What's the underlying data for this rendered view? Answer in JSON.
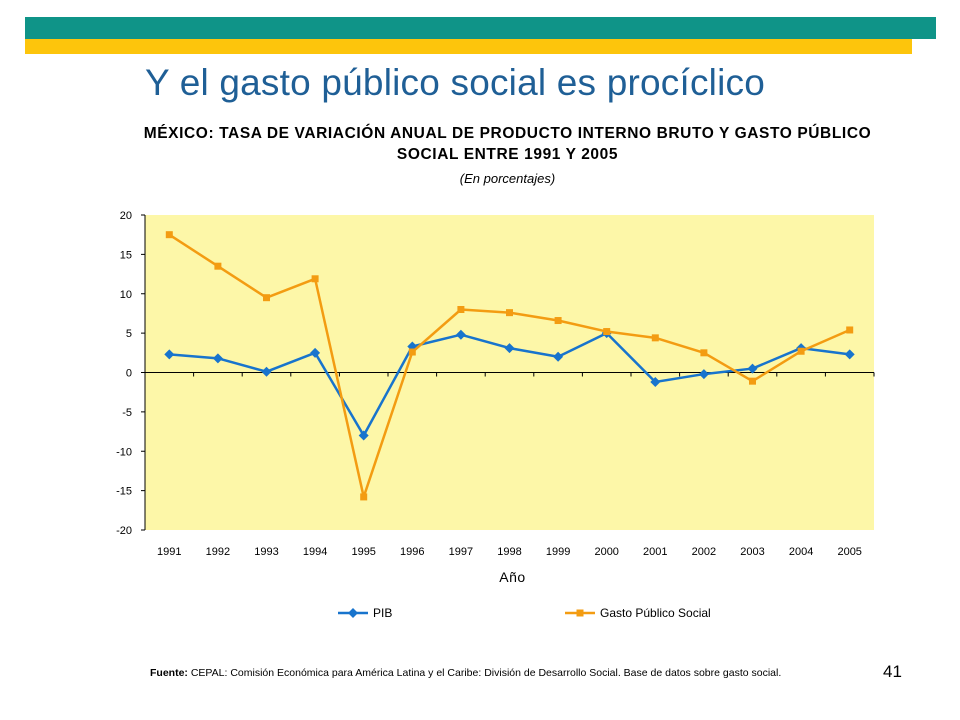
{
  "slide": {
    "title": "Y el gasto público social es procíclico",
    "page_number": "41",
    "source_label": "Fuente:",
    "source_text": "CEPAL: Comisión Económica para América Latina y el Caribe: División de Desarrollo Social. Base de datos sobre gasto social."
  },
  "colors": {
    "teal_bar": "#0f9488",
    "yellow_bar": "#fdc50c",
    "title": "#1f5f96",
    "plot_bg": "#fdf7a8",
    "pib": "#1874cd",
    "gasto": "#f39c12"
  },
  "chart_data": {
    "type": "line",
    "title": "MÉXICO: TASA DE VARIACIÓN ANUAL DE PRODUCTO INTERNO BRUTO Y GASTO PÚBLICO SOCIAL ENTRE 1991 Y 2005",
    "subtitle": "(En porcentajes)",
    "xlabel": "Año",
    "ylabel": "",
    "categories": [
      "1991",
      "1992",
      "1993",
      "1994",
      "1995",
      "1996",
      "1997",
      "1998",
      "1999",
      "2000",
      "2001",
      "2002",
      "2003",
      "2004",
      "2005"
    ],
    "ylim": [
      -20,
      20
    ],
    "yticks": [
      20,
      15,
      10,
      5,
      0,
      -5,
      -10,
      -15,
      -20
    ],
    "grid": false,
    "legend_position": "bottom",
    "series": [
      {
        "name": "PIB",
        "color": "#1874cd",
        "marker": "diamond",
        "values": [
          2.3,
          1.8,
          0.1,
          2.5,
          -8.0,
          3.3,
          4.8,
          3.1,
          2.0,
          5.0,
          -1.2,
          -0.2,
          0.5,
          3.1,
          2.3
        ]
      },
      {
        "name": "Gasto Público Social",
        "color": "#f39c12",
        "marker": "square",
        "values": [
          17.5,
          13.5,
          9.5,
          11.9,
          -15.8,
          2.6,
          8.0,
          7.6,
          6.6,
          5.2,
          4.4,
          2.5,
          -1.1,
          2.7,
          5.4
        ]
      }
    ]
  }
}
